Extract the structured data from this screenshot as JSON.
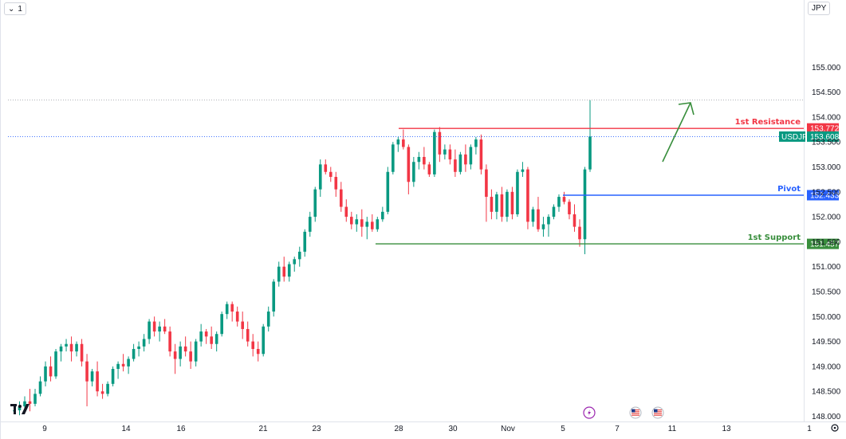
{
  "toolbar": {
    "collapse_icon": "chevron-down-icon",
    "indicator_count": "1",
    "currency": "JPY"
  },
  "logo": {
    "text": "TV"
  },
  "colors": {
    "up": "#089981",
    "down": "#f23645",
    "resistance": "#f23645",
    "pivot": "#2962ff",
    "support": "#388e3c",
    "arrow": "#388e3c",
    "last_price": "#089981",
    "event_lightning": "#9c27b0"
  },
  "chart_data": {
    "type": "candlestick",
    "symbol": "USDJPY",
    "x_ticks": [
      "9",
      "14",
      "16",
      "21",
      "23",
      "28",
      "30",
      "Nov",
      "5",
      "7",
      "11",
      "13",
      "1"
    ],
    "y_ticks": [
      "155.000",
      "154.500",
      "154.000",
      "153.500",
      "153.000",
      "152.500",
      "152.000",
      "151.500",
      "151.000",
      "150.500",
      "150.000",
      "149.500",
      "149.000",
      "148.500",
      "148.000"
    ],
    "ylim": [
      148.0,
      155.0
    ],
    "levels": [
      {
        "name": "1st Resistance",
        "value": 153.772,
        "label": "153.772"
      },
      {
        "name": "Pivot",
        "value": 152.433,
        "label": "152.433"
      },
      {
        "name": "1st Support",
        "value": 151.457,
        "label": "151.457"
      }
    ],
    "last_price": {
      "symbol": "USDJPY",
      "value": 153.608,
      "label": "153.608"
    },
    "high_marker": 154.34,
    "event_icons": [
      "lightning-icon",
      "us-flag-icon",
      "us-flag-icon"
    ],
    "candles": [
      [
        148.1,
        148.2,
        148.05,
        148.12
      ],
      [
        148.12,
        148.3,
        148.02,
        148.2
      ],
      [
        148.2,
        148.4,
        148.15,
        148.3
      ],
      [
        148.3,
        148.55,
        148.1,
        148.25
      ],
      [
        148.25,
        148.55,
        148.2,
        148.45
      ],
      [
        148.45,
        148.8,
        148.4,
        148.7
      ],
      [
        148.7,
        149.1,
        148.6,
        149.0
      ],
      [
        149.0,
        149.2,
        148.7,
        148.8
      ],
      [
        148.8,
        149.35,
        148.75,
        149.3
      ],
      [
        149.3,
        149.45,
        149.1,
        149.4
      ],
      [
        149.4,
        149.55,
        149.3,
        149.45
      ],
      [
        149.45,
        149.6,
        149.1,
        149.3
      ],
      [
        149.3,
        149.5,
        149.2,
        149.45
      ],
      [
        149.45,
        149.55,
        149.0,
        149.1
      ],
      [
        149.1,
        149.25,
        148.2,
        148.7
      ],
      [
        148.7,
        148.95,
        148.6,
        148.9
      ],
      [
        148.9,
        149.1,
        148.4,
        148.5
      ],
      [
        148.5,
        148.65,
        148.35,
        148.45
      ],
      [
        148.45,
        148.7,
        148.4,
        148.65
      ],
      [
        148.65,
        149.0,
        148.6,
        148.95
      ],
      [
        148.95,
        149.1,
        148.75,
        149.05
      ],
      [
        149.05,
        149.25,
        148.9,
        149.0
      ],
      [
        149.0,
        149.2,
        148.85,
        149.15
      ],
      [
        149.15,
        149.45,
        149.1,
        149.35
      ],
      [
        149.35,
        149.5,
        149.2,
        149.4
      ],
      [
        149.4,
        149.65,
        149.3,
        149.55
      ],
      [
        149.55,
        149.95,
        149.45,
        149.9
      ],
      [
        149.9,
        150.0,
        149.6,
        149.7
      ],
      [
        149.7,
        149.9,
        149.5,
        149.8
      ],
      [
        149.8,
        149.95,
        149.65,
        149.7
      ],
      [
        149.7,
        149.8,
        149.2,
        149.3
      ],
      [
        149.3,
        149.45,
        148.85,
        149.15
      ],
      [
        149.15,
        149.5,
        149.0,
        149.4
      ],
      [
        149.4,
        149.6,
        149.2,
        149.3
      ],
      [
        149.3,
        149.5,
        148.95,
        149.1
      ],
      [
        149.1,
        149.55,
        149.0,
        149.5
      ],
      [
        149.5,
        149.85,
        149.4,
        149.7
      ],
      [
        149.7,
        149.75,
        149.45,
        149.6
      ],
      [
        149.6,
        149.8,
        149.35,
        149.45
      ],
      [
        149.45,
        149.7,
        149.3,
        149.65
      ],
      [
        149.65,
        150.1,
        149.6,
        150.05
      ],
      [
        150.05,
        150.3,
        149.95,
        150.25
      ],
      [
        150.25,
        150.3,
        149.9,
        150.1
      ],
      [
        150.1,
        150.2,
        149.8,
        149.9
      ],
      [
        149.9,
        150.1,
        149.55,
        149.75
      ],
      [
        149.75,
        149.9,
        149.4,
        149.5
      ],
      [
        149.5,
        149.65,
        149.2,
        149.35
      ],
      [
        149.35,
        149.5,
        149.1,
        149.25
      ],
      [
        149.25,
        149.85,
        149.2,
        149.8
      ],
      [
        149.8,
        150.2,
        149.7,
        150.1
      ],
      [
        150.1,
        150.75,
        150.0,
        150.7
      ],
      [
        150.7,
        151.1,
        150.6,
        151.0
      ],
      [
        151.0,
        151.2,
        150.7,
        150.8
      ],
      [
        150.8,
        151.1,
        150.7,
        151.05
      ],
      [
        151.05,
        151.2,
        150.9,
        151.15
      ],
      [
        151.15,
        151.4,
        151.0,
        151.3
      ],
      [
        151.3,
        151.75,
        151.2,
        151.7
      ],
      [
        151.7,
        152.1,
        151.6,
        152.0
      ],
      [
        152.0,
        152.6,
        151.9,
        152.55
      ],
      [
        152.55,
        153.15,
        152.4,
        153.05
      ],
      [
        153.05,
        153.15,
        152.85,
        152.9
      ],
      [
        152.9,
        153.0,
        152.7,
        152.8
      ],
      [
        152.8,
        152.9,
        152.4,
        152.55
      ],
      [
        152.55,
        152.7,
        152.1,
        152.2
      ],
      [
        152.2,
        152.35,
        151.9,
        152.0
      ],
      [
        152.0,
        152.1,
        151.75,
        151.85
      ],
      [
        151.85,
        152.05,
        151.7,
        151.95
      ],
      [
        151.95,
        152.15,
        151.6,
        151.8
      ],
      [
        151.8,
        152.0,
        151.55,
        151.9
      ],
      [
        151.9,
        152.05,
        151.7,
        151.75
      ],
      [
        151.75,
        152.0,
        151.7,
        151.95
      ],
      [
        151.95,
        152.2,
        151.9,
        152.1
      ],
      [
        152.1,
        153.0,
        152.05,
        152.9
      ],
      [
        152.9,
        153.5,
        152.85,
        153.45
      ],
      [
        153.45,
        153.6,
        153.3,
        153.55
      ],
      [
        153.55,
        153.75,
        153.35,
        153.4
      ],
      [
        153.4,
        153.45,
        152.45,
        152.7
      ],
      [
        152.7,
        153.2,
        152.6,
        153.1
      ],
      [
        153.1,
        153.3,
        152.95,
        153.2
      ],
      [
        153.2,
        153.4,
        152.95,
        153.05
      ],
      [
        153.05,
        153.1,
        152.8,
        152.85
      ],
      [
        152.85,
        153.75,
        152.8,
        153.7
      ],
      [
        153.7,
        153.8,
        153.1,
        153.25
      ],
      [
        153.25,
        153.45,
        153.15,
        153.35
      ],
      [
        153.35,
        153.45,
        153.05,
        153.15
      ],
      [
        153.15,
        153.35,
        152.8,
        152.9
      ],
      [
        152.9,
        153.3,
        152.85,
        153.25
      ],
      [
        153.25,
        153.45,
        152.9,
        153.05
      ],
      [
        153.05,
        153.45,
        152.95,
        153.4
      ],
      [
        153.4,
        153.6,
        153.25,
        153.55
      ],
      [
        153.55,
        153.65,
        152.85,
        152.95
      ],
      [
        152.95,
        153.05,
        151.9,
        152.4
      ],
      [
        152.4,
        152.55,
        151.95,
        152.1
      ],
      [
        152.1,
        152.5,
        151.95,
        152.45
      ],
      [
        152.45,
        152.6,
        151.9,
        152.0
      ],
      [
        152.0,
        152.55,
        151.9,
        152.5
      ],
      [
        152.5,
        152.6,
        151.95,
        152.05
      ],
      [
        152.05,
        152.95,
        152.0,
        152.9
      ],
      [
        152.9,
        153.1,
        152.8,
        152.95
      ],
      [
        152.95,
        153.0,
        151.75,
        151.9
      ],
      [
        151.9,
        152.2,
        151.8,
        152.15
      ],
      [
        152.15,
        152.4,
        151.7,
        151.75
      ],
      [
        151.75,
        152.0,
        151.6,
        151.85
      ],
      [
        151.85,
        152.05,
        151.6,
        152.0
      ],
      [
        152.0,
        152.25,
        151.95,
        152.2
      ],
      [
        152.2,
        152.45,
        152.1,
        152.4
      ],
      [
        152.4,
        152.5,
        152.25,
        152.3
      ],
      [
        152.3,
        152.35,
        151.95,
        152.05
      ],
      [
        152.05,
        152.25,
        151.7,
        151.8
      ],
      [
        151.8,
        151.95,
        151.4,
        151.55
      ],
      [
        151.55,
        153.0,
        151.25,
        152.95
      ],
      [
        152.95,
        154.34,
        152.9,
        153.61
      ]
    ]
  }
}
